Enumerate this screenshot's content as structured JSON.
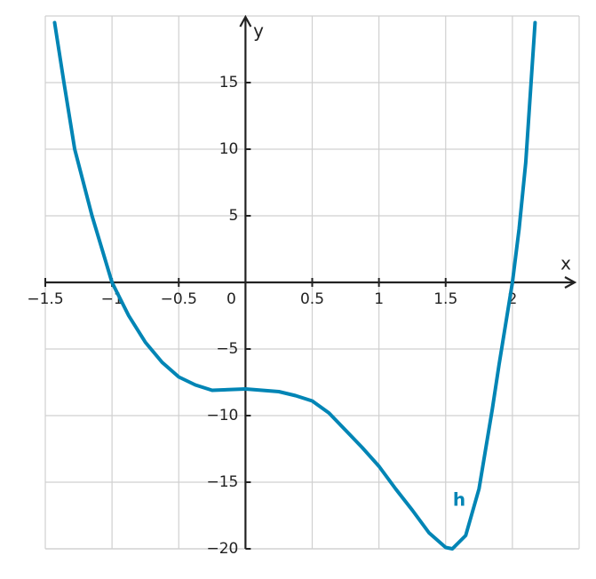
{
  "chart_data": {
    "type": "line",
    "x_label": "x",
    "y_label": "y",
    "origin_label": "0",
    "xlim": [
      -1.5,
      2.5
    ],
    "ylim": [
      -20,
      20
    ],
    "xticks": [
      {
        "value": -1.5,
        "label": "−1.5"
      },
      {
        "value": -1,
        "label": "−1"
      },
      {
        "value": -0.5,
        "label": "−0.5"
      },
      0.5,
      1,
      1.5,
      2
    ],
    "yticks": [
      15,
      10,
      5,
      {
        "value": -5,
        "label": "−5"
      },
      {
        "value": -10,
        "label": "−10"
      },
      {
        "value": -15,
        "label": "−15"
      },
      {
        "value": -20,
        "label": "−20"
      }
    ],
    "grid": true,
    "series": [
      {
        "name": "h",
        "color": "#0085b5",
        "x": [
          -1.43,
          -1.36,
          -1.28,
          -1.15,
          -1,
          -0.875,
          -0.75,
          -0.625,
          -0.5,
          -0.375,
          -0.25,
          0,
          0.25,
          0.375,
          0.5,
          0.625,
          0.75,
          0.875,
          1,
          1.125,
          1.25,
          1.375,
          1.5,
          1.55,
          1.65,
          1.75,
          1.85,
          1.9,
          2,
          2.05,
          2.1,
          2.17
        ],
        "values": [
          19.5,
          15,
          10,
          5,
          0,
          -2.5,
          -4.5,
          -6,
          -7.1,
          -7.7,
          -8.1,
          -8,
          -8.2,
          -8.5,
          -8.9,
          -9.8,
          -11.1,
          -12.4,
          -13.8,
          -15.5,
          -17.1,
          -18.8,
          -19.9,
          -20,
          -19,
          -15.5,
          -9.5,
          -6.2,
          0,
          4,
          9,
          19.5
        ]
      }
    ]
  }
}
